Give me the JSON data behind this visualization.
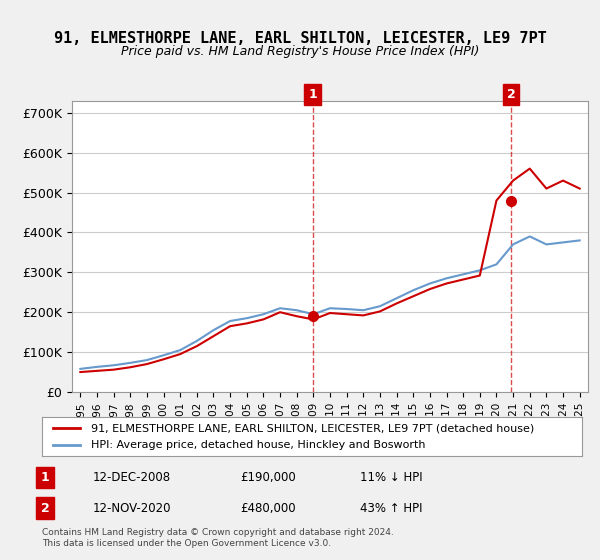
{
  "title": "91, ELMESTHORPE LANE, EARL SHILTON, LEICESTER, LE9 7PT",
  "subtitle": "Price paid vs. HM Land Registry's House Price Index (HPI)",
  "xlabel": "",
  "ylabel": "",
  "ylim": [
    0,
    730000
  ],
  "yticks": [
    0,
    100000,
    200000,
    300000,
    400000,
    500000,
    600000,
    700000
  ],
  "ytick_labels": [
    "£0",
    "£100K",
    "£200K",
    "£300K",
    "£400K",
    "£500K",
    "£600K",
    "£700K"
  ],
  "sale1_date": 2008.95,
  "sale1_price": 190000,
  "sale1_label": "1",
  "sale1_text": "12-DEC-2008",
  "sale1_amount": "£190,000",
  "sale1_pct": "11% ↓ HPI",
  "sale2_date": 2020.87,
  "sale2_price": 480000,
  "sale2_label": "2",
  "sale2_text": "12-NOV-2020",
  "sale2_amount": "£480,000",
  "sale2_pct": "43% ↑ HPI",
  "line_color_property": "#cc0000",
  "line_color_hpi": "#6699cc",
  "background_color": "#f0f0f0",
  "plot_bg_color": "#ffffff",
  "grid_color": "#cccccc",
  "legend_label_property": "91, ELMESTHORPE LANE, EARL SHILTON, LEICESTER, LE9 7PT (detached house)",
  "legend_label_hpi": "HPI: Average price, detached house, Hinckley and Bosworth",
  "footer": "Contains HM Land Registry data © Crown copyright and database right 2024.\nThis data is licensed under the Open Government Licence v3.0.",
  "hpi_years": [
    1995,
    1996,
    1997,
    1998,
    1999,
    2000,
    2001,
    2002,
    2003,
    2004,
    2005,
    2006,
    2007,
    2008,
    2009,
    2010,
    2011,
    2012,
    2013,
    2014,
    2015,
    2016,
    2017,
    2018,
    2019,
    2020,
    2021,
    2022,
    2023,
    2024,
    2025
  ],
  "hpi_values": [
    58000,
    63000,
    67000,
    73000,
    80000,
    92000,
    105000,
    128000,
    155000,
    178000,
    185000,
    195000,
    210000,
    205000,
    195000,
    210000,
    208000,
    205000,
    215000,
    235000,
    255000,
    272000,
    285000,
    295000,
    305000,
    320000,
    370000,
    390000,
    370000,
    375000,
    380000
  ],
  "prop_years": [
    1995,
    1996,
    1997,
    1998,
    1999,
    2000,
    2001,
    2002,
    2003,
    2004,
    2005,
    2006,
    2007,
    2008,
    2009,
    2010,
    2011,
    2012,
    2013,
    2014,
    2015,
    2016,
    2017,
    2018,
    2019,
    2020,
    2021,
    2022,
    2023,
    2024,
    2025
  ],
  "prop_values": [
    50000,
    53000,
    56000,
    62000,
    70000,
    82000,
    95000,
    115000,
    140000,
    165000,
    172000,
    182000,
    200000,
    190000,
    182000,
    198000,
    195000,
    192000,
    202000,
    222000,
    240000,
    258000,
    272000,
    282000,
    292000,
    480000,
    530000,
    560000,
    510000,
    530000,
    510000
  ],
  "xlim_start": 1994.5,
  "xlim_end": 2025.5
}
